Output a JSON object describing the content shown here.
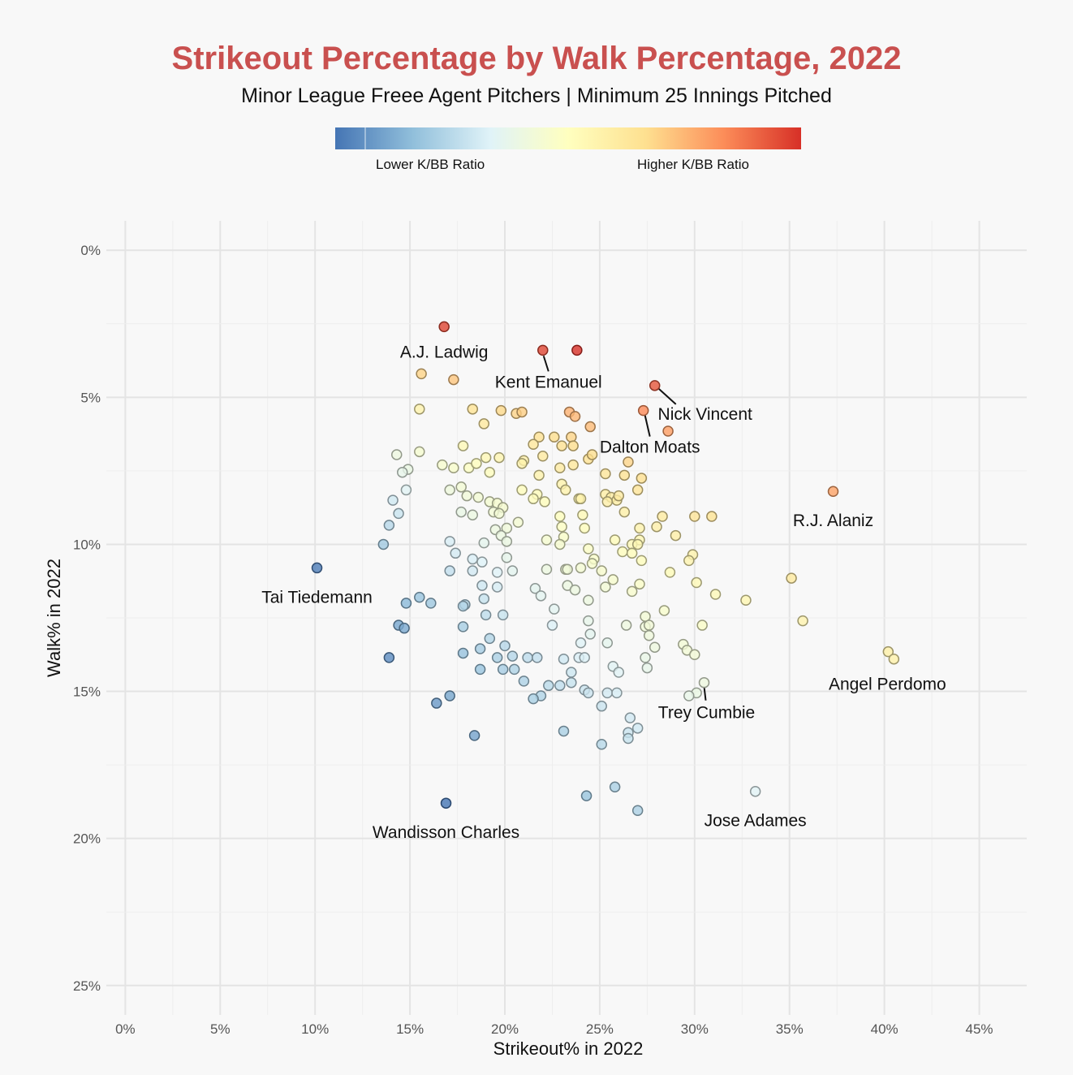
{
  "chart_data": {
    "type": "scatter",
    "title": "Strikeout Percentage by Walk Percentage, 2022",
    "subtitle": "Minor League Freee Agent Pitchers | Minimum 25 Innings Pitched",
    "xlabel": "Strikeout% in 2022",
    "ylabel": "Walk% in 2022",
    "xlim": [
      -1,
      47.5
    ],
    "ylim": [
      -1,
      26
    ],
    "y_reversed": true,
    "grid": true,
    "x_ticks": [
      0,
      5,
      10,
      15,
      20,
      25,
      30,
      35,
      40,
      45
    ],
    "x_tick_labels": [
      "0%",
      "5%",
      "10%",
      "15%",
      "20%",
      "25%",
      "30%",
      "35%",
      "40%",
      "45%"
    ],
    "y_ticks": [
      0,
      5,
      10,
      15,
      20,
      25
    ],
    "y_tick_labels": [
      "0%",
      "5%",
      "10%",
      "15%",
      "20%",
      "25%"
    ],
    "legend": {
      "low_label": "Lower K/BB Ratio",
      "high_label": "Higher K/BB Ratio",
      "colors": [
        "#4575b4",
        "#91bfdb",
        "#e0f3f8",
        "#ffffbf",
        "#fee090",
        "#fc8d59",
        "#d73027"
      ]
    },
    "points": [
      {
        "x": 16.8,
        "y": 2.6
      },
      {
        "x": 22.0,
        "y": 3.4
      },
      {
        "x": 23.8,
        "y": 3.4
      },
      {
        "x": 15.6,
        "y": 4.2
      },
      {
        "x": 17.3,
        "y": 4.4
      },
      {
        "x": 27.9,
        "y": 4.6
      },
      {
        "x": 15.5,
        "y": 5.4
      },
      {
        "x": 18.3,
        "y": 5.4
      },
      {
        "x": 19.8,
        "y": 5.45
      },
      {
        "x": 20.6,
        "y": 5.55
      },
      {
        "x": 20.9,
        "y": 5.5
      },
      {
        "x": 23.4,
        "y": 5.5
      },
      {
        "x": 23.7,
        "y": 5.65
      },
      {
        "x": 27.3,
        "y": 5.45
      },
      {
        "x": 18.9,
        "y": 5.9
      },
      {
        "x": 24.5,
        "y": 6.0
      },
      {
        "x": 28.6,
        "y": 6.15
      },
      {
        "x": 21.8,
        "y": 6.35
      },
      {
        "x": 22.6,
        "y": 6.35
      },
      {
        "x": 23.5,
        "y": 6.35
      },
      {
        "x": 21.5,
        "y": 6.6
      },
      {
        "x": 23.0,
        "y": 6.65
      },
      {
        "x": 23.6,
        "y": 6.65
      },
      {
        "x": 17.8,
        "y": 6.65
      },
      {
        "x": 14.3,
        "y": 6.95
      },
      {
        "x": 15.5,
        "y": 6.85
      },
      {
        "x": 19.0,
        "y": 7.05
      },
      {
        "x": 19.7,
        "y": 7.05
      },
      {
        "x": 22.0,
        "y": 7.0
      },
      {
        "x": 24.4,
        "y": 7.1
      },
      {
        "x": 24.6,
        "y": 6.95
      },
      {
        "x": 21.0,
        "y": 7.15
      },
      {
        "x": 20.9,
        "y": 7.25
      },
      {
        "x": 26.5,
        "y": 7.2
      },
      {
        "x": 16.7,
        "y": 7.3
      },
      {
        "x": 17.3,
        "y": 7.4
      },
      {
        "x": 18.1,
        "y": 7.4
      },
      {
        "x": 18.5,
        "y": 7.25
      },
      {
        "x": 23.6,
        "y": 7.3
      },
      {
        "x": 22.9,
        "y": 7.4
      },
      {
        "x": 14.9,
        "y": 7.45
      },
      {
        "x": 14.6,
        "y": 7.55
      },
      {
        "x": 19.2,
        "y": 7.55
      },
      {
        "x": 21.8,
        "y": 7.65
      },
      {
        "x": 25.3,
        "y": 7.6
      },
      {
        "x": 26.3,
        "y": 7.65
      },
      {
        "x": 27.2,
        "y": 7.75
      },
      {
        "x": 23.0,
        "y": 7.95
      },
      {
        "x": 17.7,
        "y": 8.05
      },
      {
        "x": 17.1,
        "y": 8.15
      },
      {
        "x": 14.8,
        "y": 8.15
      },
      {
        "x": 20.9,
        "y": 8.15
      },
      {
        "x": 23.2,
        "y": 8.15
      },
      {
        "x": 27.0,
        "y": 8.15
      },
      {
        "x": 21.7,
        "y": 8.3
      },
      {
        "x": 25.3,
        "y": 8.3
      },
      {
        "x": 25.6,
        "y": 8.4
      },
      {
        "x": 25.9,
        "y": 8.5
      },
      {
        "x": 26.0,
        "y": 8.35
      },
      {
        "x": 18.0,
        "y": 8.35
      },
      {
        "x": 18.6,
        "y": 8.4
      },
      {
        "x": 21.5,
        "y": 8.45
      },
      {
        "x": 23.9,
        "y": 8.45
      },
      {
        "x": 24.0,
        "y": 8.45
      },
      {
        "x": 14.1,
        "y": 8.5
      },
      {
        "x": 19.2,
        "y": 8.55
      },
      {
        "x": 19.6,
        "y": 8.6
      },
      {
        "x": 25.4,
        "y": 8.55
      },
      {
        "x": 22.1,
        "y": 8.55
      },
      {
        "x": 19.9,
        "y": 8.75
      },
      {
        "x": 19.4,
        "y": 8.9
      },
      {
        "x": 19.7,
        "y": 8.95
      },
      {
        "x": 17.7,
        "y": 8.9
      },
      {
        "x": 14.4,
        "y": 8.95
      },
      {
        "x": 18.3,
        "y": 9.0
      },
      {
        "x": 26.3,
        "y": 8.9
      },
      {
        "x": 22.9,
        "y": 9.05
      },
      {
        "x": 24.1,
        "y": 9.0
      },
      {
        "x": 28.3,
        "y": 9.05
      },
      {
        "x": 30.0,
        "y": 9.05
      },
      {
        "x": 30.9,
        "y": 9.05
      },
      {
        "x": 20.7,
        "y": 9.25
      },
      {
        "x": 13.9,
        "y": 9.35
      },
      {
        "x": 20.1,
        "y": 9.45
      },
      {
        "x": 19.5,
        "y": 9.5
      },
      {
        "x": 23.0,
        "y": 9.4
      },
      {
        "x": 24.2,
        "y": 9.45
      },
      {
        "x": 27.1,
        "y": 9.45
      },
      {
        "x": 28.0,
        "y": 9.4
      },
      {
        "x": 19.8,
        "y": 9.7
      },
      {
        "x": 23.1,
        "y": 9.75
      },
      {
        "x": 29.0,
        "y": 9.7
      },
      {
        "x": 17.1,
        "y": 9.9
      },
      {
        "x": 18.9,
        "y": 9.95
      },
      {
        "x": 20.1,
        "y": 9.9
      },
      {
        "x": 22.2,
        "y": 9.85
      },
      {
        "x": 25.8,
        "y": 9.85
      },
      {
        "x": 27.1,
        "y": 9.85
      },
      {
        "x": 13.6,
        "y": 10.0
      },
      {
        "x": 22.9,
        "y": 10.0
      },
      {
        "x": 26.7,
        "y": 10.0
      },
      {
        "x": 27.0,
        "y": 10.0
      },
      {
        "x": 17.4,
        "y": 10.3
      },
      {
        "x": 26.2,
        "y": 10.25
      },
      {
        "x": 26.7,
        "y": 10.3
      },
      {
        "x": 24.4,
        "y": 10.15
      },
      {
        "x": 29.9,
        "y": 10.35
      },
      {
        "x": 18.3,
        "y": 10.5
      },
      {
        "x": 20.1,
        "y": 10.45
      },
      {
        "x": 24.7,
        "y": 10.5
      },
      {
        "x": 27.2,
        "y": 10.55
      },
      {
        "x": 29.7,
        "y": 10.55
      },
      {
        "x": 18.8,
        "y": 10.6
      },
      {
        "x": 24.6,
        "y": 10.65
      },
      {
        "x": 10.1,
        "y": 10.8
      },
      {
        "x": 17.1,
        "y": 10.9
      },
      {
        "x": 18.3,
        "y": 10.9
      },
      {
        "x": 19.6,
        "y": 10.95
      },
      {
        "x": 20.4,
        "y": 10.9
      },
      {
        "x": 22.2,
        "y": 10.85
      },
      {
        "x": 23.2,
        "y": 10.85
      },
      {
        "x": 23.3,
        "y": 10.85
      },
      {
        "x": 24.0,
        "y": 10.8
      },
      {
        "x": 25.1,
        "y": 10.9
      },
      {
        "x": 28.7,
        "y": 10.95
      },
      {
        "x": 35.1,
        "y": 11.15
      },
      {
        "x": 25.7,
        "y": 11.2
      },
      {
        "x": 30.1,
        "y": 11.3
      },
      {
        "x": 27.1,
        "y": 11.35
      },
      {
        "x": 18.8,
        "y": 11.4
      },
      {
        "x": 19.6,
        "y": 11.45
      },
      {
        "x": 23.3,
        "y": 11.4
      },
      {
        "x": 25.3,
        "y": 11.45
      },
      {
        "x": 21.6,
        "y": 11.5
      },
      {
        "x": 23.7,
        "y": 11.55
      },
      {
        "x": 26.7,
        "y": 11.6
      },
      {
        "x": 31.1,
        "y": 11.7
      },
      {
        "x": 21.9,
        "y": 11.75
      },
      {
        "x": 15.5,
        "y": 11.8
      },
      {
        "x": 18.9,
        "y": 11.85
      },
      {
        "x": 24.4,
        "y": 11.9
      },
      {
        "x": 32.7,
        "y": 11.9
      },
      {
        "x": 14.8,
        "y": 12.0
      },
      {
        "x": 16.1,
        "y": 12.0
      },
      {
        "x": 17.9,
        "y": 12.05
      },
      {
        "x": 17.8,
        "y": 12.1
      },
      {
        "x": 22.6,
        "y": 12.2
      },
      {
        "x": 28.4,
        "y": 12.25
      },
      {
        "x": 19.0,
        "y": 12.4
      },
      {
        "x": 19.9,
        "y": 12.4
      },
      {
        "x": 27.4,
        "y": 12.45
      },
      {
        "x": 24.4,
        "y": 12.6
      },
      {
        "x": 35.7,
        "y": 12.6
      },
      {
        "x": 14.4,
        "y": 12.75
      },
      {
        "x": 14.7,
        "y": 12.85
      },
      {
        "x": 17.8,
        "y": 12.8
      },
      {
        "x": 22.5,
        "y": 12.75
      },
      {
        "x": 26.4,
        "y": 12.75
      },
      {
        "x": 27.4,
        "y": 12.8
      },
      {
        "x": 27.6,
        "y": 12.75
      },
      {
        "x": 30.4,
        "y": 12.75
      },
      {
        "x": 24.5,
        "y": 13.05
      },
      {
        "x": 27.6,
        "y": 13.1
      },
      {
        "x": 19.2,
        "y": 13.2
      },
      {
        "x": 24.0,
        "y": 13.35
      },
      {
        "x": 25.4,
        "y": 13.35
      },
      {
        "x": 29.4,
        "y": 13.4
      },
      {
        "x": 18.7,
        "y": 13.55
      },
      {
        "x": 20.0,
        "y": 13.45
      },
      {
        "x": 27.9,
        "y": 13.5
      },
      {
        "x": 29.6,
        "y": 13.6
      },
      {
        "x": 17.8,
        "y": 13.7
      },
      {
        "x": 30.0,
        "y": 13.75
      },
      {
        "x": 13.9,
        "y": 13.85
      },
      {
        "x": 19.6,
        "y": 13.85
      },
      {
        "x": 20.4,
        "y": 13.8
      },
      {
        "x": 21.2,
        "y": 13.85
      },
      {
        "x": 21.7,
        "y": 13.85
      },
      {
        "x": 23.1,
        "y": 13.9
      },
      {
        "x": 23.9,
        "y": 13.85
      },
      {
        "x": 24.2,
        "y": 13.85
      },
      {
        "x": 27.4,
        "y": 13.85
      },
      {
        "x": 25.7,
        "y": 14.15
      },
      {
        "x": 27.5,
        "y": 14.2
      },
      {
        "x": 18.7,
        "y": 14.25
      },
      {
        "x": 19.9,
        "y": 14.25
      },
      {
        "x": 20.5,
        "y": 14.25
      },
      {
        "x": 23.5,
        "y": 14.35
      },
      {
        "x": 26.0,
        "y": 14.35
      },
      {
        "x": 21.0,
        "y": 14.65
      },
      {
        "x": 23.5,
        "y": 14.7
      },
      {
        "x": 30.5,
        "y": 14.7
      },
      {
        "x": 22.3,
        "y": 14.8
      },
      {
        "x": 22.9,
        "y": 14.8
      },
      {
        "x": 24.2,
        "y": 14.95
      },
      {
        "x": 24.4,
        "y": 15.05
      },
      {
        "x": 25.4,
        "y": 15.05
      },
      {
        "x": 25.9,
        "y": 15.05
      },
      {
        "x": 30.1,
        "y": 15.05
      },
      {
        "x": 29.7,
        "y": 15.15
      },
      {
        "x": 21.9,
        "y": 15.15
      },
      {
        "x": 17.1,
        "y": 15.15
      },
      {
        "x": 21.5,
        "y": 15.25
      },
      {
        "x": 16.4,
        "y": 15.4
      },
      {
        "x": 25.1,
        "y": 15.5
      },
      {
        "x": 26.6,
        "y": 15.9
      },
      {
        "x": 27.0,
        "y": 16.25
      },
      {
        "x": 23.1,
        "y": 16.35
      },
      {
        "x": 26.5,
        "y": 16.4
      },
      {
        "x": 18.4,
        "y": 16.5
      },
      {
        "x": 26.5,
        "y": 16.6
      },
      {
        "x": 25.1,
        "y": 16.8
      },
      {
        "x": 25.8,
        "y": 18.25
      },
      {
        "x": 33.2,
        "y": 18.4
      },
      {
        "x": 24.3,
        "y": 18.55
      },
      {
        "x": 16.9,
        "y": 18.8
      },
      {
        "x": 27.0,
        "y": 19.05
      },
      {
        "x": 37.3,
        "y": 8.2
      },
      {
        "x": 40.2,
        "y": 13.65
      },
      {
        "x": 40.5,
        "y": 13.9
      }
    ],
    "annotations": [
      {
        "text": "A.J. Ladwig",
        "x": 16.8,
        "y": 2.6
      },
      {
        "text": "Kent Emanuel",
        "x": 22.0,
        "y": 3.4
      },
      {
        "text": "Nick Vincent",
        "x": 27.9,
        "y": 4.6
      },
      {
        "text": "Dalton Moats",
        "x": 27.3,
        "y": 5.45
      },
      {
        "text": "R.J. Alaniz",
        "x": 37.3,
        "y": 8.2
      },
      {
        "text": "Tai Tiedemann",
        "x": 10.1,
        "y": 10.8
      },
      {
        "text": "Angel Perdomo",
        "x": 40.5,
        "y": 13.9
      },
      {
        "text": "Trey Cumbie",
        "x": 30.5,
        "y": 14.7
      },
      {
        "text": "Jose Adames",
        "x": 33.2,
        "y": 18.4
      },
      {
        "text": "Wandisson Charles",
        "x": 16.9,
        "y": 18.8
      }
    ]
  }
}
